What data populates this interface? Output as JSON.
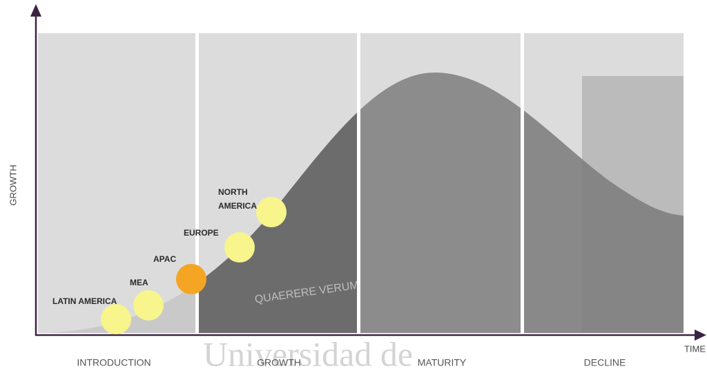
{
  "axes": {
    "y": "GROWTH",
    "x": "TIME"
  },
  "stages": [
    "INTRODUCTION",
    "GROWTH",
    "MATURITY",
    "DECLINE"
  ],
  "regions": [
    {
      "lines": [
        "LATIN AMERICA"
      ]
    },
    {
      "lines": [
        "MEA"
      ]
    },
    {
      "lines": [
        "APAC"
      ]
    },
    {
      "lines": [
        "EUROPE"
      ]
    },
    {
      "lines": [
        "NORTH",
        "AMERICA"
      ]
    }
  ],
  "watermark": {
    "motto": "QUAERERE VERUM",
    "name": "Universidad de"
  }
}
